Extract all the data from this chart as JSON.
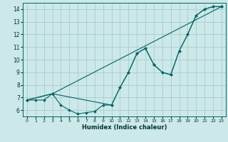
{
  "background_color": "#cce8e8",
  "grid_color": "#aacccc",
  "line_color": "#006666",
  "xlabel": "Humidex (Indice chaleur)",
  "xlim": [
    -0.5,
    23.5
  ],
  "ylim": [
    5.5,
    14.5
  ],
  "yticks": [
    6,
    7,
    8,
    9,
    10,
    11,
    12,
    13,
    14
  ],
  "xticks": [
    0,
    1,
    2,
    3,
    4,
    5,
    6,
    7,
    8,
    9,
    10,
    11,
    12,
    13,
    14,
    15,
    16,
    17,
    18,
    19,
    20,
    21,
    22,
    23
  ],
  "series": [
    {
      "x": [
        0,
        1,
        2,
        3,
        4,
        5,
        6,
        7,
        8,
        9,
        10,
        11,
        12,
        13,
        14,
        15,
        16,
        17,
        18,
        19,
        20,
        21,
        22,
        23
      ],
      "y": [
        6.8,
        6.8,
        6.8,
        7.3,
        6.4,
        6.0,
        5.7,
        5.8,
        5.9,
        6.4,
        6.4,
        7.8,
        9.0,
        10.5,
        10.9,
        9.6,
        9.0,
        8.8,
        10.7,
        12.0,
        13.5,
        14.0,
        14.2,
        14.2
      ]
    },
    {
      "x": [
        0,
        3,
        23
      ],
      "y": [
        6.8,
        7.3,
        14.2
      ]
    },
    {
      "x": [
        0,
        3,
        10,
        11,
        12,
        13,
        14,
        15,
        16,
        17,
        18,
        19,
        20,
        21,
        22,
        23
      ],
      "y": [
        6.8,
        7.3,
        6.4,
        7.8,
        9.0,
        10.5,
        10.9,
        9.6,
        9.0,
        8.8,
        10.7,
        12.0,
        13.5,
        14.0,
        14.2,
        14.2
      ]
    }
  ]
}
